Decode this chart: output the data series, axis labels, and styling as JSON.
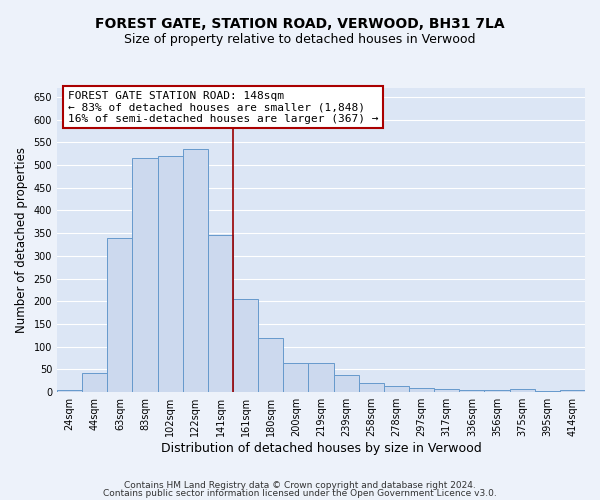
{
  "title": "FOREST GATE, STATION ROAD, VERWOOD, BH31 7LA",
  "subtitle": "Size of property relative to detached houses in Verwood",
  "xlabel": "Distribution of detached houses by size in Verwood",
  "ylabel": "Number of detached properties",
  "bar_color": "#ccd9ee",
  "bar_edge_color": "#6699cc",
  "categories": [
    "24sqm",
    "44sqm",
    "63sqm",
    "83sqm",
    "102sqm",
    "122sqm",
    "141sqm",
    "161sqm",
    "180sqm",
    "200sqm",
    "219sqm",
    "239sqm",
    "258sqm",
    "278sqm",
    "297sqm",
    "317sqm",
    "336sqm",
    "356sqm",
    "375sqm",
    "395sqm",
    "414sqm"
  ],
  "values": [
    5,
    42,
    340,
    515,
    520,
    535,
    345,
    205,
    120,
    65,
    65,
    37,
    20,
    13,
    10,
    8,
    5,
    5,
    8,
    2,
    5
  ],
  "ylim": [
    0,
    670
  ],
  "yticks": [
    0,
    50,
    100,
    150,
    200,
    250,
    300,
    350,
    400,
    450,
    500,
    550,
    600,
    650
  ],
  "annotation_text": "FOREST GATE STATION ROAD: 148sqm\n← 83% of detached houses are smaller (1,848)\n16% of semi-detached houses are larger (367) →",
  "vline_x_index": 6.5,
  "annotation_box_color": "#ffffff",
  "annotation_box_edge_color": "#aa0000",
  "footer_line1": "Contains HM Land Registry data © Crown copyright and database right 2024.",
  "footer_line2": "Contains public sector information licensed under the Open Government Licence v3.0.",
  "bg_color": "#dce6f5",
  "fig_color": "#edf2fa",
  "grid_color": "#ffffff",
  "title_fontsize": 10,
  "subtitle_fontsize": 9,
  "tick_fontsize": 7,
  "ylabel_fontsize": 8.5,
  "xlabel_fontsize": 9,
  "annotation_fontsize": 8
}
